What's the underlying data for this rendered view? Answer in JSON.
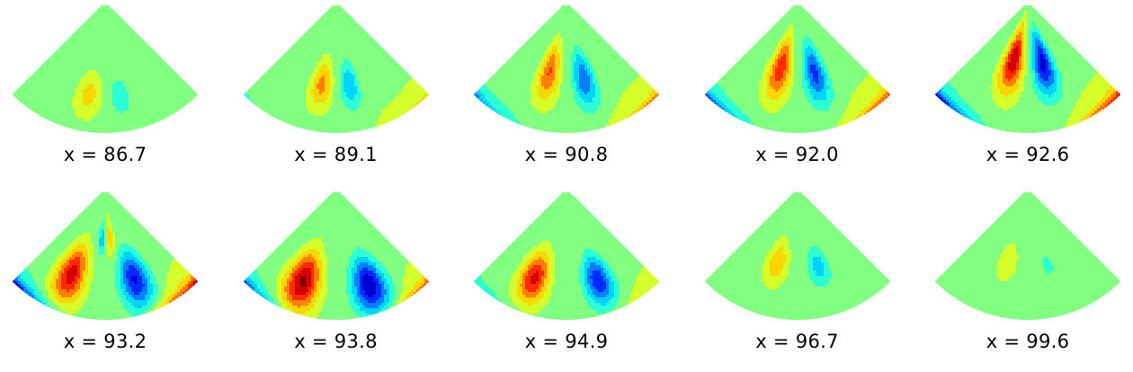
{
  "chart_data": {
    "type": "heatmap",
    "colormap": "jet",
    "layout": {
      "rows": 2,
      "cols": 5
    },
    "label_prefix": "x = ",
    "panels": [
      {
        "x_value": "86.7",
        "label": "x = 86.7",
        "blobs": [
          {
            "u": -0.22,
            "v": 0.28,
            "su": 0.12,
            "sv": 0.12,
            "amp": 0.16
          },
          {
            "u": 0.2,
            "v": 0.27,
            "su": 0.11,
            "sv": 0.12,
            "amp": -0.13
          }
        ],
        "edge": {
          "left": 0.0,
          "right": 0.0
        }
      },
      {
        "x_value": "89.1",
        "label": "x = 89.1",
        "blobs": [
          {
            "u": -0.22,
            "v": 0.36,
            "su": 0.11,
            "sv": 0.13,
            "amp": 0.24
          },
          {
            "u": 0.2,
            "v": 0.36,
            "su": 0.1,
            "sv": 0.13,
            "amp": -0.24
          }
        ],
        "edge": {
          "left": -0.06,
          "right": 0.14
        }
      },
      {
        "x_value": "90.8",
        "label": "x = 90.8",
        "blobs": [
          {
            "u": -0.3,
            "v": 0.45,
            "su": 0.12,
            "sv": 0.16,
            "amp": 0.3
          },
          {
            "u": 0.28,
            "v": 0.4,
            "su": 0.12,
            "sv": 0.16,
            "amp": -0.32
          }
        ],
        "edge": {
          "left": -0.3,
          "right": 0.25
        }
      },
      {
        "x_value": "92.0",
        "label": "x = 92.0",
        "blobs": [
          {
            "u": -0.32,
            "v": 0.48,
            "su": 0.13,
            "sv": 0.17,
            "amp": 0.36
          },
          {
            "u": 0.3,
            "v": 0.44,
            "su": 0.13,
            "sv": 0.17,
            "amp": -0.36
          }
        ],
        "edge": {
          "left": -0.35,
          "right": 0.32
        }
      },
      {
        "x_value": "92.6",
        "label": "x = 92.6",
        "blobs": [
          {
            "u": -0.3,
            "v": 0.55,
            "su": 0.14,
            "sv": 0.18,
            "amp": 0.44
          },
          {
            "u": 0.3,
            "v": 0.52,
            "su": 0.14,
            "sv": 0.18,
            "amp": -0.44
          }
        ],
        "edge": {
          "left": -0.45,
          "right": 0.42
        }
      },
      {
        "x_value": "93.2",
        "label": "x = 93.2",
        "blobs": [
          {
            "u": -0.48,
            "v": 0.3,
            "su": 0.14,
            "sv": 0.16,
            "amp": 0.42
          },
          {
            "u": 0.4,
            "v": 0.27,
            "su": 0.14,
            "sv": 0.16,
            "amp": -0.42
          },
          {
            "u": -0.08,
            "v": 0.62,
            "su": 0.06,
            "sv": 0.08,
            "amp": -0.18
          },
          {
            "u": 0.12,
            "v": 0.62,
            "su": 0.06,
            "sv": 0.08,
            "amp": 0.16
          }
        ],
        "edge": {
          "left": -0.45,
          "right": 0.45
        }
      },
      {
        "x_value": "93.8",
        "label": "x = 93.8",
        "blobs": [
          {
            "u": -0.44,
            "v": 0.25,
            "su": 0.15,
            "sv": 0.16,
            "amp": 0.48
          },
          {
            "u": 0.42,
            "v": 0.22,
            "su": 0.15,
            "sv": 0.16,
            "amp": -0.48
          }
        ],
        "edge": {
          "left": -0.32,
          "right": 0.28
        }
      },
      {
        "x_value": "94.9",
        "label": "x = 94.9",
        "blobs": [
          {
            "u": -0.44,
            "v": 0.28,
            "su": 0.13,
            "sv": 0.14,
            "amp": 0.4
          },
          {
            "u": 0.42,
            "v": 0.26,
            "su": 0.13,
            "sv": 0.14,
            "amp": -0.4
          }
        ],
        "edge": {
          "left": -0.12,
          "right": 0.1
        }
      },
      {
        "x_value": "96.7",
        "label": "x = 96.7",
        "blobs": [
          {
            "u": -0.34,
            "v": 0.42,
            "su": 0.12,
            "sv": 0.12,
            "amp": 0.2
          },
          {
            "u": 0.33,
            "v": 0.39,
            "su": 0.12,
            "sv": 0.12,
            "amp": -0.2
          }
        ],
        "edge": {
          "left": 0.0,
          "right": 0.0
        }
      },
      {
        "x_value": "99.6",
        "label": "x = 99.6",
        "blobs": [
          {
            "u": -0.34,
            "v": 0.42,
            "su": 0.13,
            "sv": 0.12,
            "amp": 0.09
          },
          {
            "u": 0.33,
            "v": 0.4,
            "su": 0.13,
            "sv": 0.12,
            "amp": -0.09
          }
        ],
        "edge": {
          "left": 0.0,
          "right": 0.0
        }
      }
    ]
  }
}
